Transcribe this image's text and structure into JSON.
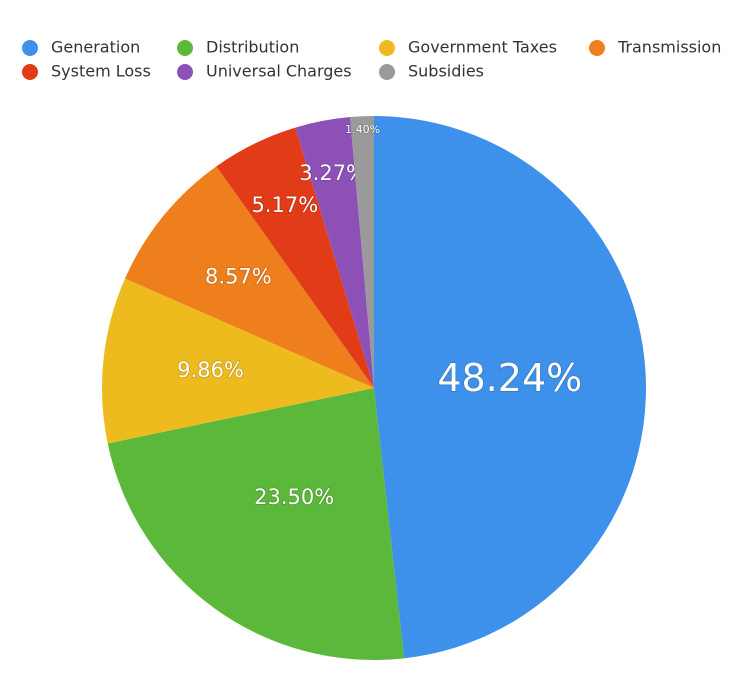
{
  "chart_data": {
    "type": "pie",
    "categories": [
      "Generation",
      "Distribution",
      "Government Taxes",
      "Transmission",
      "System Loss",
      "Universal Charges",
      "Subsidies"
    ],
    "values": [
      48.24,
      23.5,
      9.86,
      8.57,
      5.17,
      3.27,
      1.4
    ],
    "value_labels": [
      "48.24%",
      "23.50%",
      "9.86%",
      "8.57%",
      "5.17%",
      "3.27%",
      "1.40%"
    ],
    "colors": [
      "#3e91ea",
      "#5cb83a",
      "#eebb1e",
      "#ee7f1c",
      "#e23b17",
      "#8d50b6",
      "#9a9a9a"
    ],
    "legend": "top"
  }
}
